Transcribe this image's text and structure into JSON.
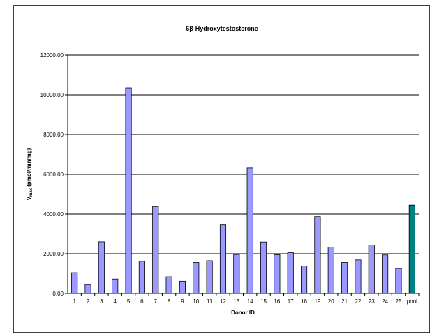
{
  "chart_data": {
    "type": "bar",
    "title": "6β-Hydroxytestosterone",
    "xlabel": "Donor ID",
    "ylabel": {
      "main": "V",
      "subscript": "max",
      "units": " (pmol/min/mg)"
    },
    "ylim": [
      0,
      12000
    ],
    "yticks": [
      "0.00",
      "2000.00",
      "4000.00",
      "6000.00",
      "8000.00",
      "10000.00",
      "12000.00"
    ],
    "grid": true,
    "legend": "none",
    "categories": [
      "1",
      "2",
      "3",
      "4",
      "5",
      "6",
      "7",
      "8",
      "9",
      "10",
      "11",
      "12",
      "13",
      "14",
      "15",
      "16",
      "17",
      "18",
      "19",
      "20",
      "21",
      "22",
      "23",
      "24",
      "25",
      "pool"
    ],
    "values": [
      1050,
      450,
      2600,
      730,
      10350,
      1620,
      4380,
      840,
      620,
      1560,
      1650,
      3450,
      1960,
      6320,
      2590,
      1950,
      2050,
      1390,
      3870,
      2330,
      1560,
      1690,
      2440,
      1940,
      1260,
      4450
    ],
    "colors": {
      "bar": "#9999ff",
      "pool_bar": "#008080",
      "bar_stroke": "#000000",
      "gridline": "#000000"
    }
  }
}
